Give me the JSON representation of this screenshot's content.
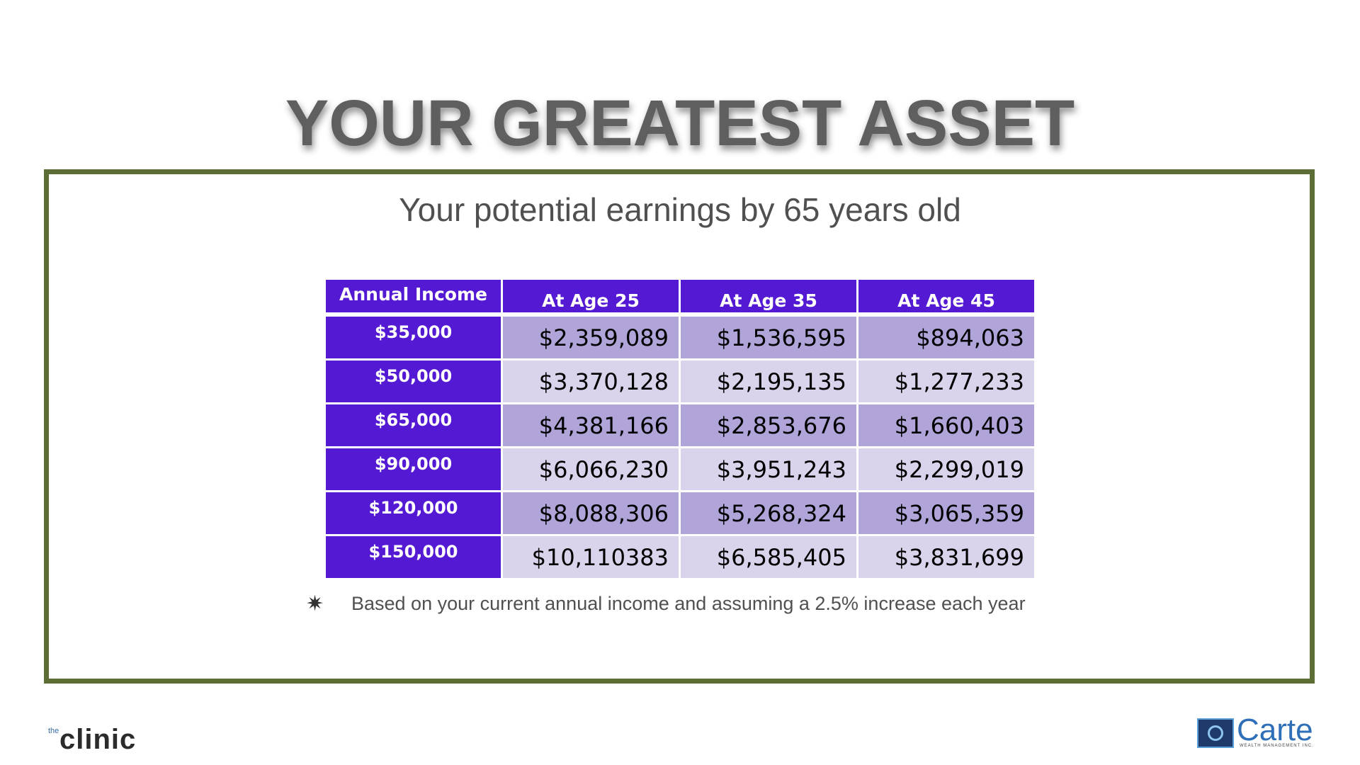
{
  "slide": {
    "title": "YOUR GREATEST ASSET",
    "subtitle": "Your potential earnings by 65 years old"
  },
  "table": {
    "headers": [
      "Annual Income",
      "At Age 25",
      "At Age 35",
      "At Age 45"
    ],
    "rows": [
      {
        "income": "$35,000",
        "age25": "$2,359,089",
        "age35": "$1,536,595",
        "age45": "$894,063"
      },
      {
        "income": "$50,000",
        "age25": "$3,370,128",
        "age35": "$2,195,135",
        "age45": "$1,277,233"
      },
      {
        "income": "$65,000",
        "age25": "$4,381,166",
        "age35": "$2,853,676",
        "age45": "$1,660,403"
      },
      {
        "income": "$90,000",
        "age25": "$6,066,230",
        "age35": "$3,951,243",
        "age45": "$2,299,019"
      },
      {
        "income": "$120,000",
        "age25": "$8,088,306",
        "age35": "$5,268,324",
        "age45": "$3,065,359"
      },
      {
        "income": "$150,000",
        "age25": "$10,110383",
        "age35": "$6,585,405",
        "age45": "$3,831,699"
      }
    ]
  },
  "footnote": {
    "icon": "star-burst-icon",
    "text": "Based on your current annual income and assuming a 2.5% increase each year"
  },
  "logos": {
    "left": {
      "prefix": "the",
      "name": "clinic"
    },
    "right": {
      "name": "Carte",
      "tagline": "WEALTH MANAGEMENT INC."
    }
  },
  "colors": {
    "header_purple": "#5419d3",
    "row_dark": "#b1a4d9",
    "row_light": "#dad3ec",
    "frame_green": "#5c6e36",
    "title_gray": "#5f5f5f"
  }
}
